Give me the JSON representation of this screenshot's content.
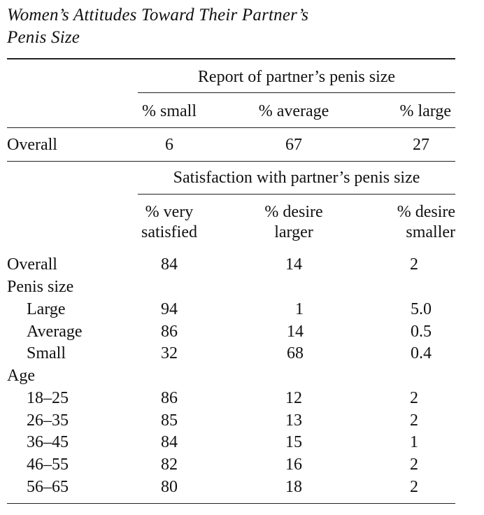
{
  "title": {
    "line1": "Women’s Attitudes Toward Their Partner’s",
    "line2": "Penis Size"
  },
  "report": {
    "heading": "Report of partner’s penis size",
    "columns": [
      "% small",
      "% average",
      "% large"
    ],
    "overall": {
      "label": "Overall",
      "values": [
        "6",
        "67",
        "27"
      ]
    }
  },
  "satisfaction": {
    "heading": "Satisfaction with partner’s penis size",
    "columns": [
      {
        "line1": "% very",
        "line2": "satisfied"
      },
      {
        "line1": "% desire",
        "line2": "larger"
      },
      {
        "line1": "% desire",
        "line2": "smaller"
      }
    ],
    "overall": {
      "label": "Overall",
      "values": [
        "84",
        "14",
        "2"
      ]
    },
    "penis_size": {
      "label": "Penis size",
      "rows": [
        {
          "label": "Large",
          "values": [
            "94",
            "1",
            "5.0"
          ]
        },
        {
          "label": "Average",
          "values": [
            "86",
            "14",
            "0.5"
          ]
        },
        {
          "label": "Small",
          "values": [
            "32",
            "68",
            "0.4"
          ]
        }
      ]
    },
    "age": {
      "label": "Age",
      "rows": [
        {
          "label": "18–25",
          "values": [
            "86",
            "12",
            "2"
          ]
        },
        {
          "label": "26–35",
          "values": [
            "85",
            "13",
            "2"
          ]
        },
        {
          "label": "36–45",
          "values": [
            "84",
            "15",
            "1"
          ]
        },
        {
          "label": "46–55",
          "values": [
            "82",
            "16",
            "2"
          ]
        },
        {
          "label": "56–65",
          "values": [
            "80",
            "18",
            "2"
          ]
        }
      ]
    }
  }
}
